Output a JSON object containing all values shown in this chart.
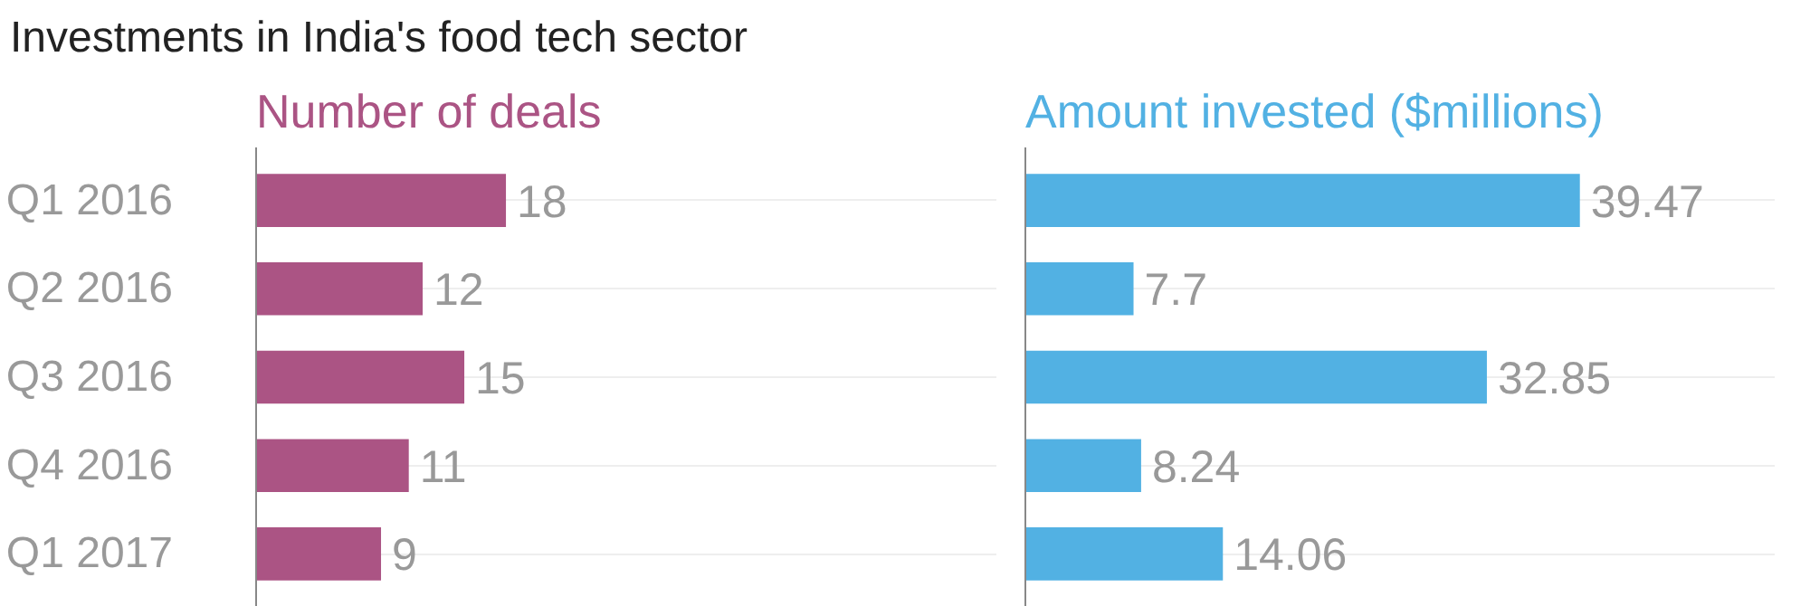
{
  "chart_data": [
    {
      "type": "bar",
      "orientation": "horizontal",
      "title": "Investments in India's food tech sector",
      "subtitle": "Number of deals",
      "categories": [
        "Q1 2016",
        "Q2 2016",
        "Q3 2016",
        "Q4 2016",
        "Q1 2017"
      ],
      "values": [
        18,
        12,
        15,
        11,
        9
      ],
      "color": "#ab5484",
      "data_labels": true,
      "grid": "y",
      "tick_labels": "y"
    },
    {
      "type": "bar",
      "orientation": "horizontal",
      "subtitle": "Amount invested ($millions)",
      "categories": [
        null,
        null,
        null,
        null,
        null
      ],
      "values": [
        39.47,
        7.7,
        32.85,
        8.24,
        14.06
      ],
      "color": "#52b1e3",
      "data_labels": true,
      "grid": "y",
      "tick_labels": false
    }
  ]
}
